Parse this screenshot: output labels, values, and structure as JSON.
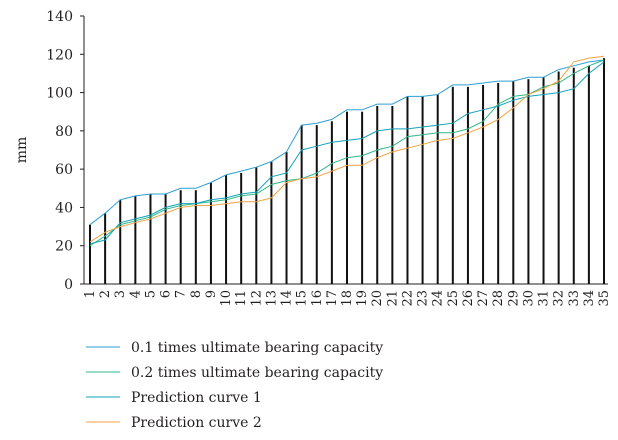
{
  "chart_data": {
    "type": "bar+line",
    "ylabel": "mm",
    "ylim": [
      0,
      140
    ],
    "yticks": [
      "0",
      "20",
      "40",
      "60",
      "80",
      "100",
      "120",
      "140"
    ],
    "categories": [
      "1",
      "2",
      "3",
      "4",
      "5",
      "6",
      "7",
      "8",
      "9",
      "10",
      "11",
      "12",
      "13",
      "14",
      "15",
      "16",
      "17",
      "18",
      "19",
      "20",
      "21",
      "22",
      "23",
      "24",
      "25",
      "26",
      "27",
      "28",
      "29",
      "30",
      "31",
      "32",
      "33",
      "34",
      "35"
    ],
    "bars": [
      31,
      37,
      44,
      46,
      47,
      47,
      49,
      49,
      53,
      57,
      58,
      61,
      64,
      69,
      83,
      83,
      85,
      90,
      90,
      93,
      93,
      98,
      98,
      99,
      103,
      103,
      104,
      105,
      106,
      107,
      108,
      111,
      113,
      114,
      118
    ],
    "series": [
      {
        "name": "0.1 times ultimate bearing capacity",
        "color": "#2e9fd3",
        "values": [
          31,
          37,
          44,
          46,
          47,
          47,
          50,
          50,
          53,
          57,
          59,
          61,
          64,
          69,
          83,
          84,
          86,
          91,
          91,
          94,
          94,
          98,
          98,
          99,
          104,
          104,
          105,
          106,
          106,
          108,
          108,
          112,
          114,
          116,
          117
        ]
      },
      {
        "name": "0.2 times ultimate bearing capacity",
        "color": "#2fb88a",
        "values": [
          20,
          25,
          31,
          33,
          35,
          39,
          41,
          42,
          43,
          44,
          46,
          47,
          52,
          54,
          55,
          58,
          63,
          66,
          67,
          70,
          72,
          77,
          78,
          79,
          79,
          81,
          85,
          94,
          98,
          99,
          103,
          105,
          110,
          114,
          117
        ]
      },
      {
        "name": "Prediction curve 1",
        "color": "#13a3b8",
        "values": [
          21,
          23,
          32,
          34,
          36,
          40,
          42,
          42,
          44,
          45,
          47,
          48,
          56,
          58,
          70,
          72,
          74,
          75,
          76,
          80,
          81,
          81,
          82,
          83,
          84,
          89,
          91,
          93,
          96,
          98,
          99,
          100,
          102,
          110,
          116
        ]
      },
      {
        "name": "Prediction curve 2",
        "color": "#f0a446",
        "values": [
          22,
          27,
          30,
          32,
          34,
          37,
          40,
          41,
          41,
          42,
          43,
          43,
          45,
          53,
          55,
          56,
          59,
          62,
          62,
          66,
          69,
          71,
          73,
          75,
          76,
          79,
          82,
          86,
          92,
          99,
          102,
          106,
          116,
          118,
          119
        ]
      }
    ],
    "legend_position": "bottom",
    "grid": false
  }
}
